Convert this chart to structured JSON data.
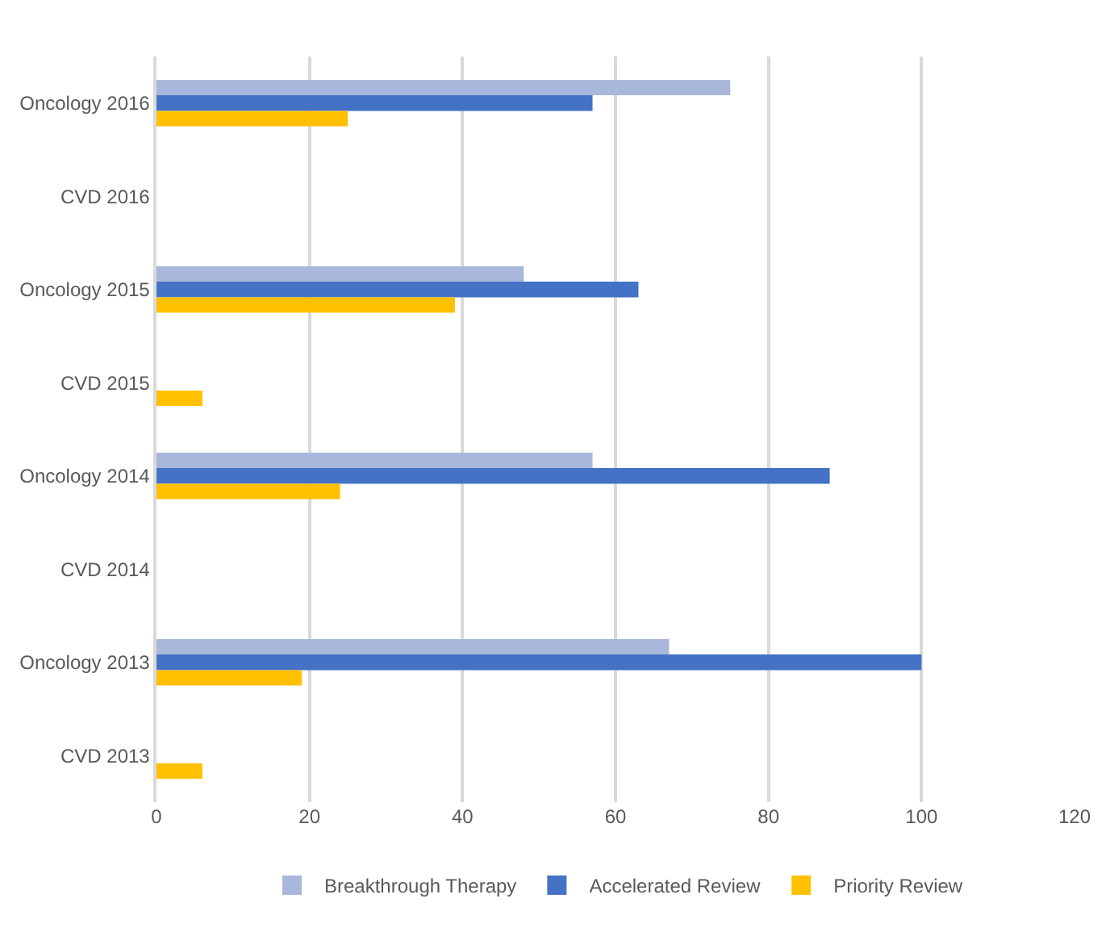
{
  "chart_data": {
    "type": "bar",
    "orientation": "horizontal",
    "categories": [
      "Oncology 2016",
      "CVD 2016",
      "Oncology 2015",
      "CVD 2015",
      "Oncology 2014",
      "CVD 2014",
      "Oncology 2013",
      "CVD 2013"
    ],
    "series": [
      {
        "name": "Breakthrough Therapy",
        "color": "#a9b7dc",
        "values": [
          75,
          null,
          48,
          null,
          57,
          null,
          67,
          null
        ]
      },
      {
        "name": "Accelerated Review",
        "color": "#4472c4",
        "values": [
          57,
          null,
          63,
          null,
          88,
          null,
          100,
          null
        ]
      },
      {
        "name": "Priority Review",
        "color": "#ffc000",
        "values": [
          25,
          null,
          39,
          6,
          24,
          null,
          19,
          6
        ]
      }
    ],
    "xlim": [
      0,
      120
    ],
    "xticks": [
      0,
      20,
      40,
      60,
      80,
      100,
      120
    ],
    "grid": "x",
    "legend": "bottom"
  }
}
